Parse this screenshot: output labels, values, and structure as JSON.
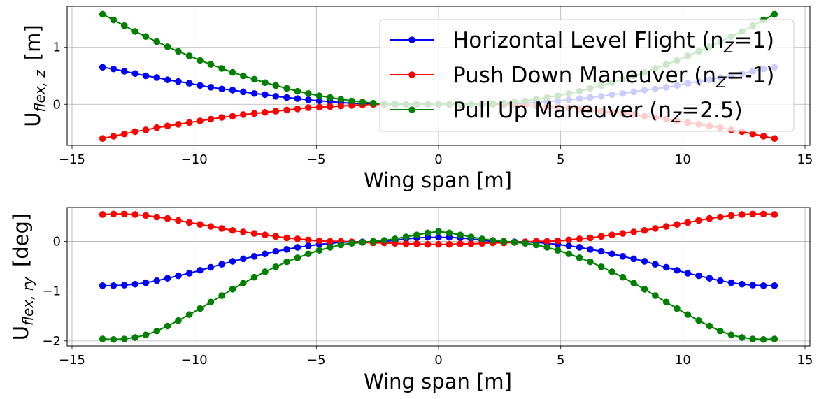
{
  "chart_data": [
    {
      "type": "line",
      "xlabel": "Wing span [m]",
      "ylabel_main": "U",
      "ylabel_sub": "flex, z",
      "ylabel_unit": "[m]",
      "xlim": [
        -15.2,
        15.2
      ],
      "ylim": [
        -0.72,
        1.72
      ],
      "xticks": [
        -15,
        -10,
        -5,
        0,
        5,
        10,
        15
      ],
      "xtick_labels": [
        "−15",
        "−10",
        "−5",
        "0",
        "5",
        "10",
        "15"
      ],
      "yticks": [
        -1,
        0,
        1
      ],
      "ytick_labels": [
        "",
        "0",
        "1"
      ],
      "grid": true,
      "legend_position": "top-right",
      "x": [
        -13.75,
        -13.3,
        -12.86,
        -12.42,
        -11.98,
        -11.53,
        -11.09,
        -10.65,
        -10.2,
        -9.76,
        -9.32,
        -8.87,
        -8.43,
        -7.99,
        -7.54,
        -7.1,
        -6.66,
        -6.21,
        -5.77,
        -5.33,
        -4.88,
        -4.44,
        -4.0,
        -3.55,
        -3.11,
        -2.67,
        -2.22,
        -1.78,
        -1.33,
        -0.89,
        -0.44,
        0.0,
        0.44,
        0.89,
        1.33,
        1.78,
        2.22,
        2.67,
        3.11,
        3.55,
        4.0,
        4.44,
        4.88,
        5.33,
        5.77,
        6.21,
        6.66,
        7.1,
        7.54,
        7.99,
        8.43,
        8.87,
        9.32,
        9.76,
        10.2,
        10.65,
        11.09,
        11.53,
        11.98,
        12.42,
        12.86,
        13.3,
        13.75
      ],
      "series": [
        {
          "name": "Horizontal Level Flight (n",
          "name_sub": "Z",
          "name_tail": "=1)",
          "color": "#0000ff",
          "values": [
            0.65,
            0.62,
            0.58,
            0.54,
            0.5,
            0.47,
            0.43,
            0.4,
            0.37,
            0.33,
            0.3,
            0.27,
            0.25,
            0.22,
            0.19,
            0.17,
            0.14,
            0.12,
            0.1,
            0.08,
            0.06,
            0.05,
            0.03,
            0.02,
            0.01,
            0.0,
            0.0,
            0.0,
            0.0,
            0.0,
            0.0,
            0.0,
            0.0,
            0.0,
            0.0,
            0.0,
            0.0,
            0.0,
            0.01,
            0.02,
            0.03,
            0.05,
            0.06,
            0.08,
            0.1,
            0.12,
            0.14,
            0.17,
            0.19,
            0.22,
            0.25,
            0.27,
            0.3,
            0.33,
            0.37,
            0.4,
            0.43,
            0.47,
            0.5,
            0.54,
            0.58,
            0.62,
            0.65
          ]
        },
        {
          "name": "Push Down Maneuver (n",
          "name_sub": "Z",
          "name_tail": "=-1)",
          "color": "#ff0000",
          "values": [
            -0.6,
            -0.56,
            -0.52,
            -0.48,
            -0.45,
            -0.41,
            -0.38,
            -0.35,
            -0.32,
            -0.29,
            -0.26,
            -0.23,
            -0.21,
            -0.18,
            -0.16,
            -0.14,
            -0.12,
            -0.1,
            -0.08,
            -0.06,
            -0.05,
            -0.04,
            -0.03,
            -0.02,
            -0.01,
            0.0,
            0.0,
            0.0,
            0.0,
            0.0,
            0.0,
            0.0,
            0.0,
            0.0,
            0.0,
            0.0,
            0.0,
            0.0,
            -0.01,
            -0.02,
            -0.03,
            -0.04,
            -0.05,
            -0.06,
            -0.08,
            -0.1,
            -0.12,
            -0.14,
            -0.16,
            -0.18,
            -0.21,
            -0.23,
            -0.26,
            -0.29,
            -0.32,
            -0.35,
            -0.38,
            -0.41,
            -0.45,
            -0.48,
            -0.52,
            -0.56,
            -0.6
          ]
        },
        {
          "name": "Pull Up Maneuver (n",
          "name_sub": "Z",
          "name_tail": "=2.5)",
          "color": "#008000",
          "values": [
            1.58,
            1.48,
            1.38,
            1.28,
            1.19,
            1.1,
            1.01,
            0.93,
            0.85,
            0.77,
            0.7,
            0.63,
            0.56,
            0.5,
            0.44,
            0.38,
            0.33,
            0.28,
            0.23,
            0.19,
            0.15,
            0.12,
            0.09,
            0.06,
            0.04,
            0.02,
            0.01,
            0.0,
            0.0,
            0.0,
            0.0,
            0.0,
            0.0,
            0.0,
            0.0,
            0.0,
            0.01,
            0.02,
            0.04,
            0.06,
            0.09,
            0.12,
            0.15,
            0.19,
            0.23,
            0.28,
            0.33,
            0.38,
            0.44,
            0.5,
            0.56,
            0.63,
            0.7,
            0.77,
            0.85,
            0.93,
            1.01,
            1.1,
            1.19,
            1.28,
            1.38,
            1.48,
            1.58
          ]
        }
      ]
    },
    {
      "type": "line",
      "xlabel": "Wing span [m]",
      "ylabel_main": "U",
      "ylabel_sub": "flex, ry",
      "ylabel_unit": "[deg]",
      "xlim": [
        -15.2,
        15.2
      ],
      "ylim": [
        -2.1,
        0.68
      ],
      "xticks": [
        -15,
        -10,
        -5,
        0,
        5,
        10,
        15
      ],
      "xtick_labels": [
        "−15",
        "−10",
        "−5",
        "0",
        "5",
        "10",
        "15"
      ],
      "yticks": [
        -2,
        -1,
        0
      ],
      "ytick_labels": [
        "−2",
        "−1",
        "0"
      ],
      "grid": true,
      "x": [
        -13.75,
        -13.3,
        -12.86,
        -12.42,
        -11.98,
        -11.53,
        -11.09,
        -10.65,
        -10.2,
        -9.76,
        -9.32,
        -8.87,
        -8.43,
        -7.99,
        -7.54,
        -7.1,
        -6.66,
        -6.21,
        -5.77,
        -5.33,
        -4.88,
        -4.44,
        -4.0,
        -3.55,
        -3.11,
        -2.67,
        -2.22,
        -1.78,
        -1.33,
        -0.89,
        -0.44,
        0.0,
        0.44,
        0.89,
        1.33,
        1.78,
        2.22,
        2.67,
        3.11,
        3.55,
        4.0,
        4.44,
        4.88,
        5.33,
        5.77,
        6.21,
        6.66,
        7.1,
        7.54,
        7.99,
        8.43,
        8.87,
        9.32,
        9.76,
        10.2,
        10.65,
        11.09,
        11.53,
        11.98,
        12.42,
        12.86,
        13.3,
        13.75
      ],
      "series": [
        {
          "color": "#0000ff",
          "values": [
            -0.89,
            -0.89,
            -0.88,
            -0.86,
            -0.83,
            -0.79,
            -0.74,
            -0.69,
            -0.64,
            -0.58,
            -0.52,
            -0.46,
            -0.4,
            -0.35,
            -0.3,
            -0.25,
            -0.2,
            -0.16,
            -0.12,
            -0.09,
            -0.06,
            -0.04,
            -0.02,
            -0.01,
            -0.01,
            -0.01,
            0.0,
            0.02,
            0.05,
            0.07,
            0.08,
            0.08,
            0.08,
            0.07,
            0.05,
            0.02,
            0.0,
            -0.01,
            -0.01,
            -0.01,
            -0.02,
            -0.04,
            -0.06,
            -0.09,
            -0.12,
            -0.16,
            -0.2,
            -0.25,
            -0.3,
            -0.35,
            -0.4,
            -0.46,
            -0.52,
            -0.58,
            -0.64,
            -0.69,
            -0.74,
            -0.79,
            -0.83,
            -0.86,
            -0.88,
            -0.89,
            -0.89
          ]
        },
        {
          "color": "#ff0000",
          "values": [
            0.54,
            0.55,
            0.55,
            0.54,
            0.52,
            0.49,
            0.46,
            0.42,
            0.38,
            0.34,
            0.3,
            0.26,
            0.22,
            0.19,
            0.16,
            0.13,
            0.1,
            0.07,
            0.05,
            0.03,
            0.01,
            0.0,
            0.0,
            -0.01,
            -0.02,
            -0.03,
            -0.03,
            -0.04,
            -0.05,
            -0.05,
            -0.06,
            -0.06,
            -0.06,
            -0.05,
            -0.05,
            -0.04,
            -0.03,
            -0.03,
            -0.02,
            -0.01,
            0.0,
            0.0,
            0.01,
            0.03,
            0.05,
            0.07,
            0.1,
            0.13,
            0.16,
            0.19,
            0.22,
            0.26,
            0.3,
            0.34,
            0.38,
            0.42,
            0.46,
            0.49,
            0.52,
            0.54,
            0.55,
            0.55,
            0.54
          ]
        },
        {
          "color": "#008000",
          "values": [
            -1.96,
            -1.97,
            -1.96,
            -1.93,
            -1.88,
            -1.8,
            -1.7,
            -1.59,
            -1.47,
            -1.35,
            -1.22,
            -1.09,
            -0.96,
            -0.84,
            -0.72,
            -0.61,
            -0.51,
            -0.41,
            -0.33,
            -0.25,
            -0.18,
            -0.12,
            -0.07,
            -0.04,
            -0.02,
            0.0,
            0.02,
            0.05,
            0.09,
            0.13,
            0.17,
            0.2,
            0.17,
            0.13,
            0.09,
            0.05,
            0.02,
            0.0,
            -0.02,
            -0.04,
            -0.07,
            -0.12,
            -0.18,
            -0.25,
            -0.33,
            -0.41,
            -0.51,
            -0.61,
            -0.72,
            -0.84,
            -0.96,
            -1.09,
            -1.22,
            -1.35,
            -1.47,
            -1.59,
            -1.7,
            -1.8,
            -1.88,
            -1.93,
            -1.96,
            -1.97,
            -1.96
          ]
        }
      ]
    }
  ]
}
